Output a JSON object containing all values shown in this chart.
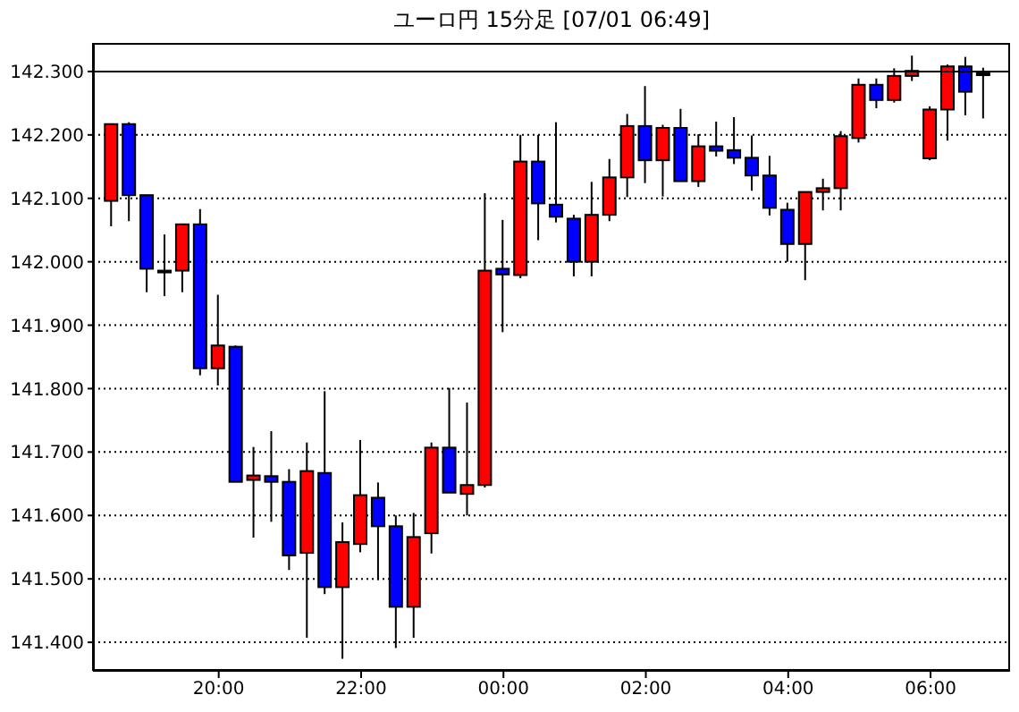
{
  "chart_data": {
    "type": "candlestick",
    "title": "ユーロ円 15分足 [07/01 06:49]",
    "x": [
      "--06-30T18:30",
      "--06-30T18:45",
      "--06-30T19:00",
      "--06-30T19:15",
      "--06-30T19:30",
      "--06-30T19:45",
      "--06-30T20:00",
      "--06-30T20:15",
      "--06-30T20:30",
      "--06-30T20:45",
      "--06-30T21:00",
      "--06-30T21:15",
      "--06-30T21:30",
      "--06-30T21:45",
      "--06-30T22:00",
      "--06-30T22:15",
      "--06-30T22:30",
      "--06-30T22:45",
      "--06-30T23:00",
      "--06-30T23:15",
      "--06-30T23:30",
      "--06-30T23:45",
      "--07-01T00:00",
      "--07-01T00:15",
      "--07-01T00:30",
      "--07-01T00:45",
      "--07-01T01:00",
      "--07-01T01:15",
      "--07-01T01:30",
      "--07-01T01:45",
      "--07-01T02:00",
      "--07-01T02:15",
      "--07-01T02:30",
      "--07-01T02:45",
      "--07-01T03:00",
      "--07-01T03:15",
      "--07-01T03:30",
      "--07-01T03:45",
      "--07-01T04:00",
      "--07-01T04:15",
      "--07-01T04:30",
      "--07-01T04:45",
      "--07-01T05:00",
      "--07-01T05:15",
      "--07-01T05:30",
      "--07-01T05:45",
      "--07-01T06:00",
      "--07-01T06:15",
      "--07-01T06:30",
      "--07-01T06:45"
    ],
    "ohlc": [
      [
        142.096,
        142.217,
        142.056,
        142.217
      ],
      [
        142.217,
        142.22,
        142.064,
        142.105
      ],
      [
        142.105,
        142.105,
        141.952,
        141.989
      ],
      [
        141.986,
        142.043,
        141.946,
        141.986
      ],
      [
        141.986,
        142.059,
        141.952,
        142.059
      ],
      [
        142.059,
        142.083,
        141.821,
        141.832
      ],
      [
        141.832,
        141.948,
        141.805,
        141.868
      ],
      [
        141.866,
        141.868,
        141.653,
        141.653
      ],
      [
        141.656,
        141.708,
        141.565,
        141.663
      ],
      [
        141.662,
        141.733,
        141.59,
        141.653
      ],
      [
        141.653,
        141.673,
        141.514,
        141.537
      ],
      [
        141.541,
        141.715,
        141.407,
        141.67
      ],
      [
        141.667,
        141.796,
        141.476,
        141.487
      ],
      [
        141.487,
        141.589,
        141.374,
        141.558
      ],
      [
        141.555,
        141.719,
        141.542,
        141.632
      ],
      [
        141.628,
        141.652,
        141.498,
        141.583
      ],
      [
        141.583,
        141.6,
        141.391,
        141.456
      ],
      [
        141.456,
        141.604,
        141.407,
        141.566
      ],
      [
        141.572,
        141.715,
        141.54,
        141.707
      ],
      [
        141.707,
        141.801,
        141.636,
        141.636
      ],
      [
        141.634,
        141.778,
        141.6,
        141.648
      ],
      [
        141.648,
        142.108,
        141.644,
        141.986
      ],
      [
        141.989,
        142.066,
        141.889,
        141.98
      ],
      [
        141.979,
        142.2,
        141.974,
        142.158
      ],
      [
        142.158,
        142.2,
        142.034,
        142.092
      ],
      [
        142.09,
        142.22,
        142.062,
        142.071
      ],
      [
        142.068,
        142.074,
        141.977,
        142
      ],
      [
        142,
        142.126,
        141.977,
        142.074
      ],
      [
        142.074,
        142.162,
        142.064,
        142.133
      ],
      [
        142.133,
        142.233,
        142.102,
        142.214
      ],
      [
        142.214,
        142.277,
        142.124,
        142.16
      ],
      [
        142.16,
        142.216,
        142.103,
        142.211
      ],
      [
        142.211,
        142.241,
        142.127,
        142.127
      ],
      [
        142.127,
        142.201,
        142.118,
        142.182
      ],
      [
        142.182,
        142.221,
        142.166,
        142.175
      ],
      [
        142.176,
        142.228,
        142.154,
        142.164
      ],
      [
        142.164,
        142.199,
        142.112,
        142.136
      ],
      [
        142.136,
        142.167,
        142.073,
        142.085
      ],
      [
        142.082,
        142.093,
        142,
        142.028
      ],
      [
        142.028,
        142.11,
        141.971,
        142.11
      ],
      [
        142.11,
        142.131,
        142.081,
        142.116
      ],
      [
        142.116,
        142.206,
        142.081,
        142.198
      ],
      [
        142.195,
        142.289,
        142.188,
        142.279
      ],
      [
        142.279,
        142.289,
        142.242,
        142.255
      ],
      [
        142.255,
        142.305,
        142.251,
        142.293
      ],
      [
        142.293,
        142.325,
        142.285,
        142.301
      ],
      [
        142.163,
        142.245,
        142.16,
        142.24
      ],
      [
        142.24,
        142.311,
        142.191,
        142.308
      ],
      [
        142.308,
        142.323,
        142.231,
        142.268
      ],
      [
        142.297,
        142.306,
        142.226,
        142.297
      ]
    ],
    "colors": [
      "#ff0000",
      "#0000ff",
      "#0000ff",
      "#0000ff",
      "#ff0000",
      "#0000ff",
      "#ff0000",
      "#0000ff",
      "#ff0000",
      "#0000ff",
      "#0000ff",
      "#ff0000",
      "#0000ff",
      "#ff0000",
      "#ff0000",
      "#0000ff",
      "#0000ff",
      "#ff0000",
      "#ff0000",
      "#0000ff",
      "#ff0000",
      "#ff0000",
      "#0000ff",
      "#ff0000",
      "#0000ff",
      "#0000ff",
      "#0000ff",
      "#ff0000",
      "#ff0000",
      "#ff0000",
      "#0000ff",
      "#ff0000",
      "#0000ff",
      "#ff0000",
      "#0000ff",
      "#0000ff",
      "#0000ff",
      "#0000ff",
      "#0000ff",
      "#ff0000",
      "#ff0000",
      "#ff0000",
      "#ff0000",
      "#0000ff",
      "#ff0000",
      "#ff0000",
      "#ff0000",
      "#ff0000",
      "#0000ff",
      "#0000ff"
    ],
    "xlim": [
      "--06-30T18:14",
      "--07-01T07:07"
    ],
    "xticks": [
      {
        "value": "--06-30T20:00",
        "label": "20:00"
      },
      {
        "value": "--06-30T22:00",
        "label": "22:00"
      },
      {
        "value": "--07-01T00:00",
        "label": "00:00"
      },
      {
        "value": "--07-01T02:00",
        "label": "02:00"
      },
      {
        "value": "--07-01T04:00",
        "label": "04:00"
      },
      {
        "value": "--07-01T06:00",
        "label": "06:00"
      }
    ],
    "ylim": [
      141.355,
      142.345
    ],
    "yticks": [
      {
        "value": 141.4,
        "label": "141.400"
      },
      {
        "value": 141.5,
        "label": "141.500"
      },
      {
        "value": 141.6,
        "label": "141.600"
      },
      {
        "value": 141.7,
        "label": "141.700"
      },
      {
        "value": 141.8,
        "label": "141.800"
      },
      {
        "value": 141.9,
        "label": "141.900"
      },
      {
        "value": 142,
        "label": "142.000"
      },
      {
        "value": 142.1,
        "label": "142.100"
      },
      {
        "value": 142.2,
        "label": "142.200"
      },
      {
        "value": 142.3,
        "label": "142.300"
      }
    ],
    "grid": "y",
    "ref_lines": [
      {
        "axis": "y",
        "value": 142.3,
        "color": "#000000",
        "line_style": "solid"
      }
    ]
  }
}
